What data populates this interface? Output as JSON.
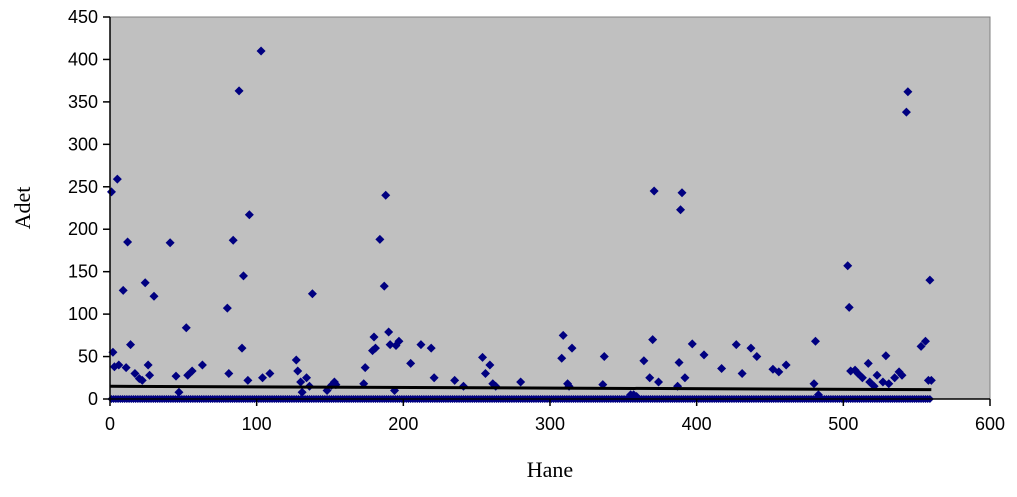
{
  "chart_data": {
    "type": "scatter",
    "xlabel": "Hane",
    "ylabel": "Adet",
    "xlim": [
      0,
      600
    ],
    "ylim": [
      0,
      450
    ],
    "x_ticks": [
      "0",
      "100",
      "200",
      "300",
      "400",
      "500",
      "600"
    ],
    "y_ticks": [
      "0",
      "50",
      "100",
      "150",
      "200",
      "250",
      "300",
      "350",
      "400",
      "450"
    ],
    "grid": false,
    "legend": "none",
    "plot_background": "#C0C0C0",
    "marker_color": "#000080",
    "trend_color": "#000000",
    "trendline": {
      "x": [
        0,
        560
      ],
      "y": [
        15,
        11
      ]
    },
    "points": {
      "x": [
        1,
        2,
        3,
        5,
        6,
        9,
        11,
        12,
        14,
        17,
        20,
        22,
        24,
        26,
        27,
        30,
        41,
        45,
        47,
        52,
        53,
        56,
        63,
        80,
        81,
        84,
        88,
        90,
        91,
        94,
        95,
        103,
        104,
        109,
        127,
        128,
        130,
        131,
        134,
        136,
        138,
        148,
        151,
        153,
        154,
        173,
        174,
        179,
        180,
        181,
        184,
        187,
        188,
        190,
        191,
        194,
        195,
        197,
        205,
        212,
        219,
        221,
        235,
        241,
        254,
        256,
        259,
        261,
        263,
        280,
        308,
        309,
        312,
        313,
        315,
        336,
        337,
        355,
        357,
        359,
        364,
        368,
        370,
        371,
        374,
        387,
        388,
        389,
        390,
        392,
        397,
        405,
        417,
        427,
        431,
        437,
        441,
        452,
        456,
        461,
        480,
        481,
        483,
        503,
        504,
        505,
        508,
        510,
        513,
        517,
        518,
        521,
        523,
        527,
        529,
        531,
        535,
        538,
        540,
        543,
        544,
        553,
        556,
        558,
        559,
        560
      ],
      "y": [
        244,
        55,
        38,
        259,
        40,
        128,
        37,
        185,
        64,
        30,
        24,
        22,
        137,
        40,
        28,
        121,
        184,
        27,
        8,
        84,
        28,
        33,
        40,
        107,
        30,
        187,
        363,
        60,
        145,
        22,
        217,
        410,
        25,
        30,
        46,
        33,
        20,
        8,
        25,
        15,
        124,
        10,
        16,
        20,
        17,
        18,
        37,
        57,
        73,
        60,
        188,
        133,
        240,
        79,
        64,
        10,
        63,
        68,
        42,
        64,
        60,
        25,
        22,
        15,
        49,
        30,
        40,
        18,
        15,
        20,
        48,
        75,
        18,
        15,
        60,
        17,
        50,
        5,
        5,
        3,
        45,
        25,
        70,
        245,
        20,
        15,
        43,
        223,
        243,
        25,
        65,
        52,
        36,
        64,
        30,
        60,
        50,
        35,
        32,
        40,
        18,
        68,
        5,
        157,
        108,
        33,
        34,
        30,
        25,
        42,
        20,
        15,
        28,
        20,
        51,
        18,
        25,
        32,
        28,
        338,
        362,
        62,
        68,
        22,
        140,
        22
      ]
    }
  }
}
